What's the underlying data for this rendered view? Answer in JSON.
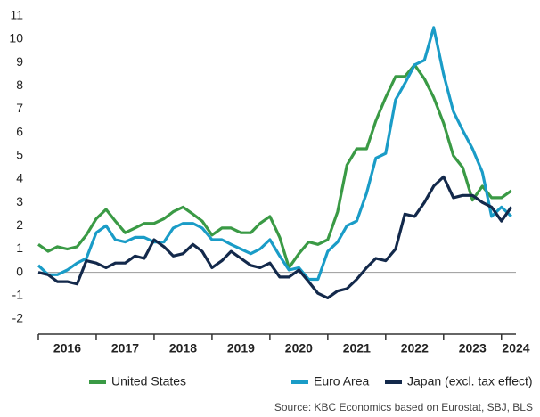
{
  "chart_data": {
    "type": "line",
    "source": "Source: KBC Economics based on Eurostat, SBJ, BLS",
    "x": [
      2016,
      2016.17,
      2016.33,
      2016.5,
      2016.67,
      2016.83,
      2017,
      2017.17,
      2017.33,
      2017.5,
      2017.67,
      2017.83,
      2018,
      2018.17,
      2018.33,
      2018.5,
      2018.67,
      2018.83,
      2019,
      2019.17,
      2019.33,
      2019.5,
      2019.67,
      2019.83,
      2020,
      2020.17,
      2020.33,
      2020.5,
      2020.67,
      2020.83,
      2021,
      2021.17,
      2021.33,
      2021.5,
      2021.67,
      2021.83,
      2022,
      2022.17,
      2022.33,
      2022.5,
      2022.67,
      2022.83,
      2023,
      2023.17,
      2023.33,
      2023.5,
      2023.67,
      2023.83,
      2024,
      2024.17
    ],
    "series": [
      {
        "name": "United States",
        "color": "#3a9a45",
        "values": [
          1.2,
          0.9,
          1.1,
          1.0,
          1.1,
          1.6,
          2.3,
          2.7,
          2.2,
          1.7,
          1.9,
          2.1,
          2.1,
          2.3,
          2.6,
          2.8,
          2.5,
          2.2,
          1.6,
          1.9,
          1.9,
          1.7,
          1.7,
          2.1,
          2.4,
          1.5,
          0.2,
          0.8,
          1.3,
          1.2,
          1.4,
          2.6,
          4.6,
          5.3,
          5.3,
          6.5,
          7.5,
          8.4,
          8.4,
          8.9,
          8.3,
          7.5,
          6.4,
          5.0,
          4.5,
          3.1,
          3.7,
          3.2,
          3.2,
          3.5
        ]
      },
      {
        "name": "Euro Area",
        "color": "#1a9cc7",
        "values": [
          0.3,
          -0.1,
          -0.1,
          0.1,
          0.4,
          0.6,
          1.7,
          2.0,
          1.4,
          1.3,
          1.5,
          1.5,
          1.3,
          1.3,
          1.9,
          2.1,
          2.1,
          1.9,
          1.4,
          1.4,
          1.2,
          1.0,
          0.8,
          1.0,
          1.4,
          0.7,
          0.1,
          0.2,
          -0.3,
          -0.3,
          0.9,
          1.3,
          2.0,
          2.2,
          3.4,
          4.9,
          5.1,
          7.4,
          8.1,
          8.9,
          9.1,
          10.5,
          8.5,
          6.9,
          6.1,
          5.3,
          4.3,
          2.4,
          2.8,
          2.4
        ]
      },
      {
        "name": "Japan (excl. tax effect)",
        "color": "#13294b",
        "values": [
          0.0,
          -0.1,
          -0.4,
          -0.4,
          -0.5,
          0.5,
          0.4,
          0.2,
          0.4,
          0.4,
          0.7,
          0.6,
          1.4,
          1.1,
          0.7,
          0.8,
          1.2,
          0.9,
          0.2,
          0.5,
          0.9,
          0.6,
          0.3,
          0.2,
          0.4,
          -0.2,
          -0.2,
          0.1,
          -0.4,
          -0.9,
          -1.1,
          -0.8,
          -0.7,
          -0.3,
          0.2,
          0.6,
          0.5,
          1.0,
          2.5,
          2.4,
          3.0,
          3.7,
          4.1,
          3.2,
          3.3,
          3.3,
          3.0,
          2.8,
          2.2,
          2.8
        ]
      }
    ],
    "xlim": [
      2016,
      2024.25
    ],
    "xticks": [
      2016,
      2017,
      2018,
      2019,
      2020,
      2021,
      2022,
      2023,
      2024
    ],
    "ylim": [
      -2.65,
      11.3
    ],
    "yticks": [
      -2,
      -1,
      0,
      1,
      2,
      3,
      4,
      5,
      6,
      7,
      8,
      9,
      10,
      11
    ],
    "reference_line": 0,
    "grid": false,
    "legend": "bottom"
  }
}
